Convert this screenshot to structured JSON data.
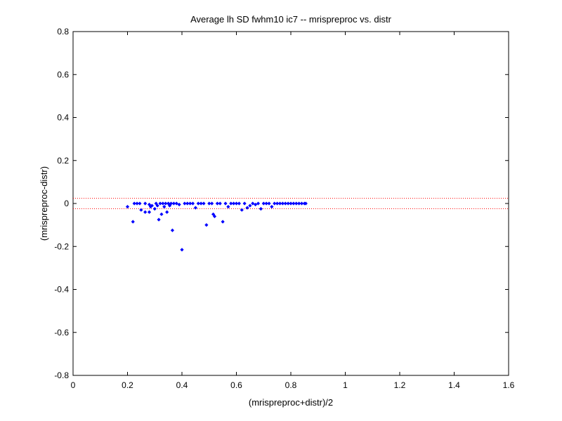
{
  "chart_data": {
    "type": "scatter",
    "title": "Average lh SD fwhm10 ic7 -- mrispreproc vs. distr",
    "xlabel": "(mrispreproc+distr)/2",
    "ylabel": "(mrispreproc-distr)",
    "xlim": [
      0,
      1.6
    ],
    "ylim": [
      -0.8,
      0.8
    ],
    "xticks": [
      0,
      0.2,
      0.4,
      0.6,
      0.8,
      1,
      1.2,
      1.4,
      1.6
    ],
    "xtick_labels": [
      "0",
      "0.2",
      "0.4",
      "0.6",
      "0.8",
      "1",
      "1.2",
      "1.4",
      "1.6"
    ],
    "yticks": [
      0.8,
      0.6,
      0.4,
      0.2,
      0,
      -0.2,
      -0.4,
      -0.6,
      -0.8
    ],
    "ytick_labels": [
      "0.8",
      "0.6",
      "0.4",
      "0.2",
      "0",
      "-0.2",
      "-0.4",
      "-0.6",
      "-0.8"
    ],
    "grid": false,
    "colors": {
      "points": "#0000ff",
      "reference_lines": "#ff0000"
    },
    "reference_lines": [
      {
        "y": 0.024,
        "style": "dotted"
      },
      {
        "y": -0.024,
        "style": "dotted"
      }
    ],
    "series": [
      {
        "marker": "diamond",
        "points": [
          [
            0.2,
            -0.015
          ],
          [
            0.22,
            -0.085
          ],
          [
            0.225,
            0
          ],
          [
            0.235,
            0
          ],
          [
            0.245,
            0
          ],
          [
            0.25,
            -0.03
          ],
          [
            0.265,
            0
          ],
          [
            0.265,
            -0.04
          ],
          [
            0.28,
            -0.005
          ],
          [
            0.28,
            -0.04
          ],
          [
            0.285,
            -0.015
          ],
          [
            0.29,
            -0.01
          ],
          [
            0.3,
            -0.025
          ],
          [
            0.305,
            0
          ],
          [
            0.31,
            -0.01
          ],
          [
            0.315,
            -0.075
          ],
          [
            0.32,
            0
          ],
          [
            0.325,
            -0.05
          ],
          [
            0.33,
            0
          ],
          [
            0.335,
            -0.015
          ],
          [
            0.34,
            0
          ],
          [
            0.345,
            -0.04
          ],
          [
            0.35,
            0
          ],
          [
            0.355,
            -0.01
          ],
          [
            0.36,
            0
          ],
          [
            0.365,
            -0.125
          ],
          [
            0.37,
            0
          ],
          [
            0.38,
            0
          ],
          [
            0.39,
            -0.005
          ],
          [
            0.4,
            -0.215
          ],
          [
            0.41,
            0
          ],
          [
            0.42,
            0
          ],
          [
            0.43,
            0
          ],
          [
            0.44,
            0
          ],
          [
            0.45,
            -0.02
          ],
          [
            0.46,
            0
          ],
          [
            0.47,
            0
          ],
          [
            0.48,
            0
          ],
          [
            0.49,
            -0.1
          ],
          [
            0.5,
            0
          ],
          [
            0.51,
            0
          ],
          [
            0.515,
            -0.05
          ],
          [
            0.52,
            -0.06
          ],
          [
            0.53,
            0
          ],
          [
            0.54,
            0
          ],
          [
            0.55,
            -0.085
          ],
          [
            0.56,
            0
          ],
          [
            0.57,
            -0.015
          ],
          [
            0.58,
            0
          ],
          [
            0.59,
            0
          ],
          [
            0.6,
            0
          ],
          [
            0.61,
            0
          ],
          [
            0.62,
            -0.03
          ],
          [
            0.63,
            0
          ],
          [
            0.64,
            -0.02
          ],
          [
            0.65,
            -0.01
          ],
          [
            0.66,
            0
          ],
          [
            0.67,
            -0.005
          ],
          [
            0.68,
            0
          ],
          [
            0.69,
            -0.025
          ],
          [
            0.7,
            0
          ],
          [
            0.71,
            0
          ],
          [
            0.72,
            0
          ],
          [
            0.73,
            -0.015
          ],
          [
            0.74,
            0
          ],
          [
            0.75,
            0
          ],
          [
            0.76,
            0
          ],
          [
            0.77,
            0
          ],
          [
            0.78,
            0
          ],
          [
            0.79,
            0
          ],
          [
            0.8,
            0
          ],
          [
            0.81,
            0
          ],
          [
            0.82,
            0
          ],
          [
            0.83,
            0
          ],
          [
            0.84,
            0
          ],
          [
            0.85,
            0
          ],
          [
            0.855,
            0
          ]
        ]
      }
    ]
  }
}
